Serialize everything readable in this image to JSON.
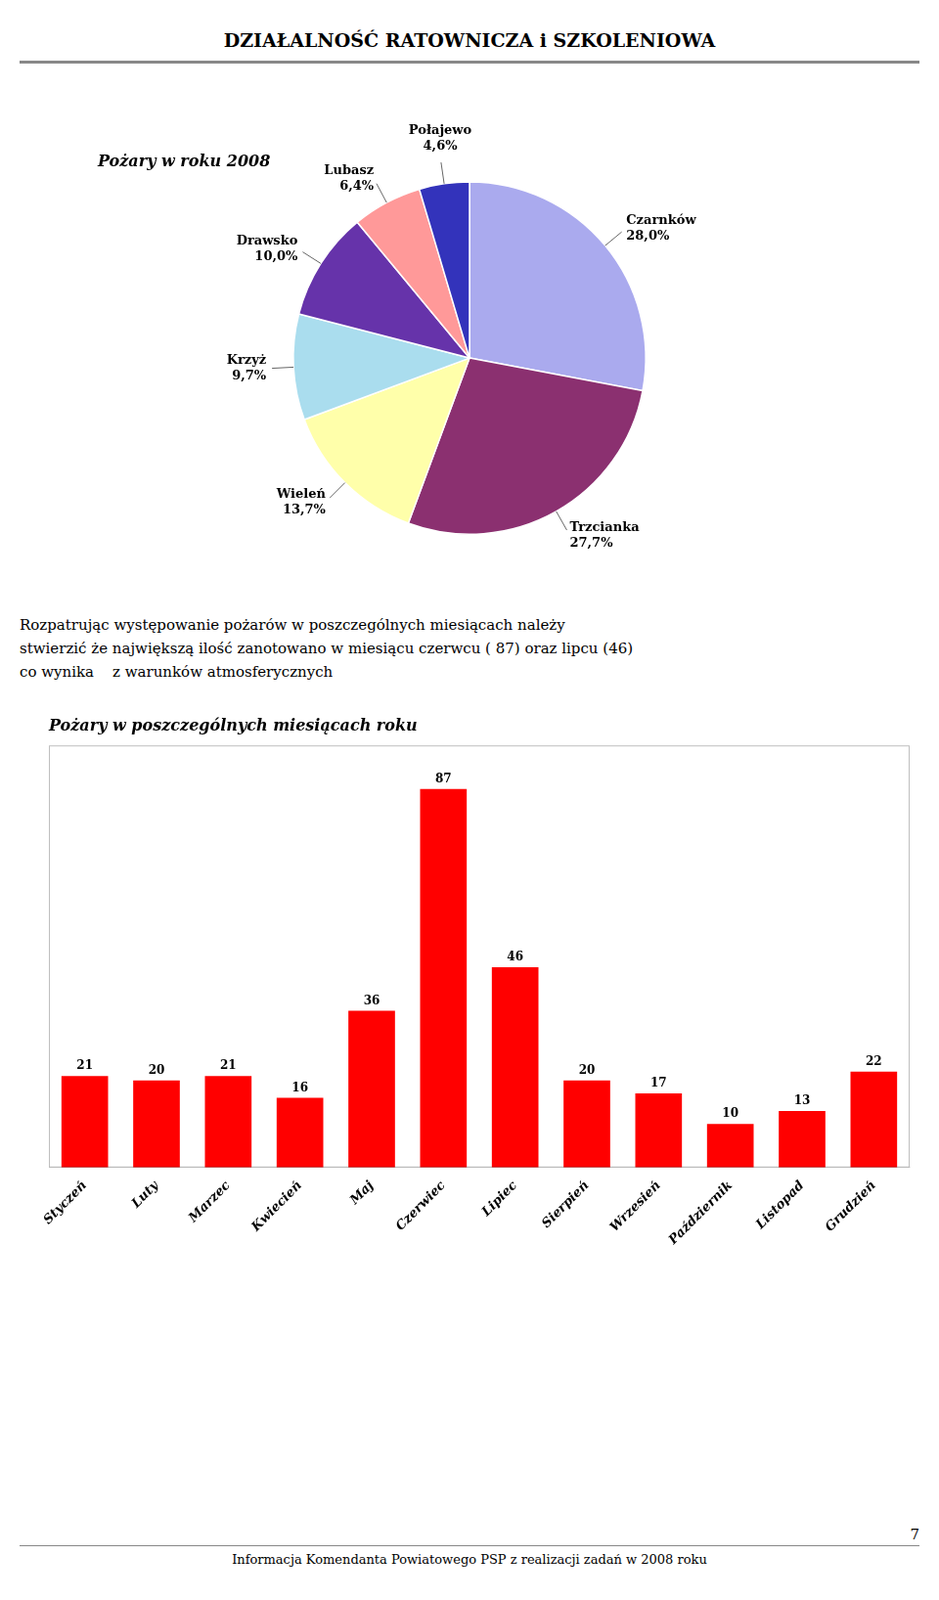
{
  "title": "DZIAŁALNOŚĆ RATOWNICZA i SZKOLENIOWA",
  "annotations": [
    "Rozpatrując występowanie pożarów w poszczególnych miesiącach należy",
    "stwierzić że największą ilość zanotowano w miesiącu czerwcu ( 87) oraz lipcu (46)",
    "co wynika    z warunków atmosferycznych",
    "Informacja Komendanta Powiatowego PSP z realizacji zadań w 2008 roku",
    "7"
  ],
  "chart_data": [
    {
      "type": "pie",
      "title": "Pożary w roku 2008",
      "categories": [
        "Czarnków",
        "Trzcianka",
        "Wieleń",
        "Krzyż",
        "Drawsko",
        "Lubasz",
        "Połajewo"
      ],
      "values": [
        28.0,
        27.7,
        13.7,
        9.7,
        10.0,
        6.4,
        4.6
      ],
      "value_labels": [
        "28,0%",
        "27,7%",
        "13,7%",
        "9,7%",
        "10,0%",
        "6,4%",
        "4,6%"
      ],
      "colors": [
        "#aaaaee",
        "#8B3070",
        "#ffffaa",
        "#aaddee",
        "#6633aa",
        "#ff9999",
        "#3333bb"
      ],
      "data_labels": true,
      "legend": false
    },
    {
      "type": "bar",
      "title": "Pożary w poszczególnych miesiącach roku",
      "categories": [
        "Styczeń",
        "Luty",
        "Marzec",
        "Kwiecień",
        "Maj",
        "Czerwiec",
        "Lipiec",
        "Sierpień",
        "Wrzesień",
        "Październik",
        "Listopad",
        "Grudzień"
      ],
      "values": [
        21,
        20,
        21,
        16,
        36,
        87,
        46,
        20,
        17,
        10,
        13,
        22
      ],
      "color": "#ff0000",
      "ylim": [
        0,
        97
      ],
      "tick_labels": "x",
      "data_labels": true,
      "grid": false,
      "legend": false
    }
  ]
}
